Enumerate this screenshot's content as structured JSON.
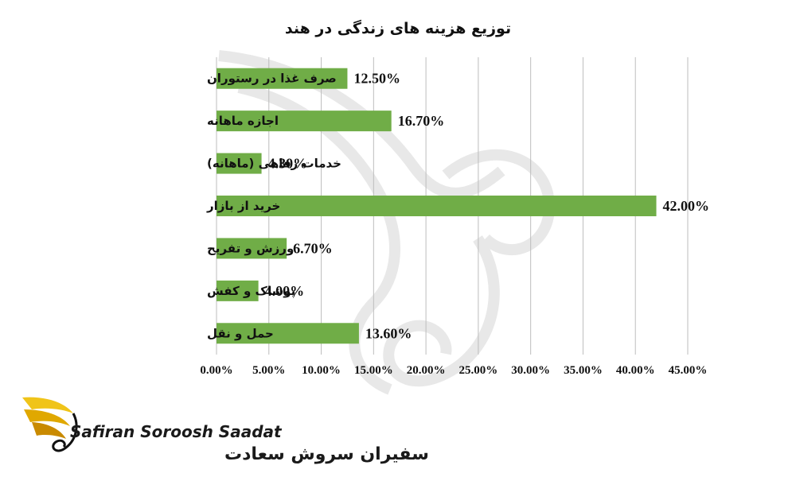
{
  "colors": {
    "bar": "#70ad47",
    "grid": "#bdbdbd",
    "logo": "#f0c419"
  },
  "chart_data": {
    "type": "bar",
    "orientation": "horizontal",
    "title": "توزیع هزینه های زندگی در هند",
    "categories": [
      "صرف غذا در رستوران",
      "اجازه ماهانه",
      "خدمات رفاهی (ماهانه)",
      "خرید از بازار",
      "ورزش و تفریح",
      "پوشاک و کفش",
      "حمل و نقل"
    ],
    "values": [
      12.5,
      16.7,
      4.3,
      42.0,
      6.7,
      4.0,
      13.6
    ],
    "data_labels": [
      "12.50%",
      "16.70%",
      "4.30%",
      "42.00%",
      "6.70%",
      "4.00%",
      "13.60%"
    ],
    "xticks": [
      "0.00%",
      "5.00%",
      "10.00%",
      "15.00%",
      "20.00%",
      "25.00%",
      "30.00%",
      "35.00%",
      "40.00%",
      "45.00%"
    ],
    "xlim": [
      0,
      45
    ],
    "grid": "vertical",
    "legend": "none"
  },
  "brand": {
    "name_en": "Safiran Soroosh Saadat",
    "name_fa": "سفیران سروش سعادت",
    "logo_icon": "golden-bird-logo-icon"
  }
}
